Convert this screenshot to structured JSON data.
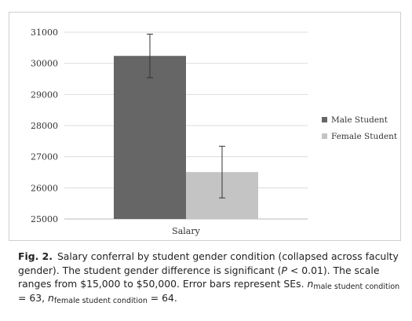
{
  "colors": {
    "male": "#666666",
    "female": "#c4c4c4",
    "gridline": "#dcdcdc",
    "axis": "#bbbbbb",
    "errorbar": "#333333"
  },
  "chart_data": {
    "type": "bar",
    "categories": [
      "Salary"
    ],
    "series": [
      {
        "name": "Male Student",
        "values": [
          30238
        ],
        "error": [
          700
        ]
      },
      {
        "name": "Female Student",
        "values": [
          26507
        ],
        "error": [
          830
        ]
      }
    ],
    "ylim": [
      25000,
      31000
    ],
    "yticks": [
      "25000",
      "26000",
      "27000",
      "28000",
      "29000",
      "30000",
      "31000"
    ],
    "xlabel": "",
    "ylabel": "",
    "grid": true,
    "legend_position": "right"
  },
  "caption": {
    "label": "Fig. 2.",
    "text1": "Salary conferral by student gender condition (collapsed across faculty gender). The student gender difference is significant (",
    "p_italic": "P",
    "text2": " < 0.01). The scale ranges from $15,000 to $50,000. Error bars represent SEs. ",
    "n1_italic": "n",
    "n1_sub": "male student condition",
    "n1_value": " = 63, ",
    "n2_italic": "n",
    "n2_sub": "female student condition",
    "n2_value": " = 64."
  }
}
